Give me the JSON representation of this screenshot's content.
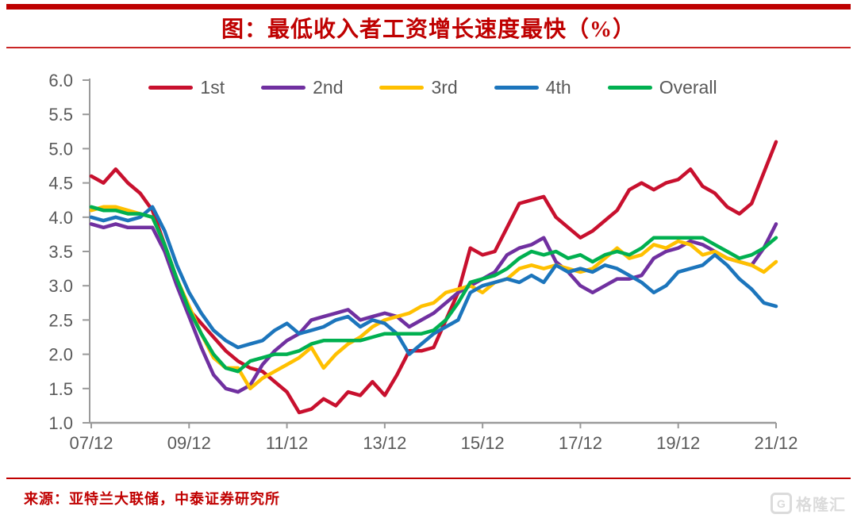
{
  "page": {
    "title": "图：最低收入者工资增长速度最快（%）",
    "source": "来源：亚特兰大联储，中泰证券研究所",
    "watermark": "格隆汇",
    "accent_color": "#C00000",
    "axis_text_color": "#595959",
    "axis_line_color": "#9A9A9A"
  },
  "chart_data": {
    "type": "line",
    "title": "图：最低收入者工资增长速度最快（%）",
    "xlabel": "",
    "ylabel": "",
    "ylim": [
      1.0,
      6.0
    ],
    "grid": false,
    "legend_position": "top",
    "x_start": "2007/12",
    "x_end": "2021/12",
    "frequency": "quarterly",
    "x_tick_labels": [
      "07/12",
      "09/12",
      "11/12",
      "13/12",
      "15/12",
      "17/12",
      "19/12",
      "21/12"
    ],
    "y_tick_labels": [
      "6.0",
      "5.5",
      "5.0",
      "4.5",
      "4.0",
      "3.5",
      "3.0",
      "2.5",
      "2.0",
      "1.5",
      "1.0"
    ],
    "y_ticks": [
      6.0,
      5.5,
      5.0,
      4.5,
      4.0,
      3.5,
      3.0,
      2.5,
      2.0,
      1.5,
      1.0
    ],
    "series": [
      {
        "name": "1st",
        "color": "#C8102E",
        "values": [
          4.6,
          4.5,
          4.7,
          4.5,
          4.35,
          4.1,
          3.6,
          3.1,
          2.65,
          2.45,
          2.25,
          2.05,
          1.9,
          1.8,
          1.75,
          1.6,
          1.45,
          1.15,
          1.2,
          1.35,
          1.25,
          1.45,
          1.4,
          1.6,
          1.4,
          1.7,
          2.05,
          2.05,
          2.1,
          2.5,
          2.9,
          3.55,
          3.45,
          3.5,
          3.85,
          4.2,
          4.25,
          4.3,
          4.0,
          3.85,
          3.7,
          3.8,
          3.95,
          4.1,
          4.4,
          4.5,
          4.4,
          4.5,
          4.55,
          4.7,
          4.45,
          4.35,
          4.15,
          4.05,
          4.2,
          4.65,
          5.1
        ]
      },
      {
        "name": "2nd",
        "color": "#7030A0",
        "values": [
          3.9,
          3.85,
          3.9,
          3.85,
          3.85,
          3.85,
          3.5,
          3.0,
          2.55,
          2.1,
          1.7,
          1.5,
          1.45,
          1.55,
          1.85,
          2.05,
          2.2,
          2.3,
          2.5,
          2.55,
          2.6,
          2.65,
          2.5,
          2.55,
          2.6,
          2.55,
          2.4,
          2.5,
          2.6,
          2.75,
          2.9,
          3.0,
          3.1,
          3.2,
          3.45,
          3.55,
          3.6,
          3.7,
          3.35,
          3.2,
          3.0,
          2.9,
          3.0,
          3.1,
          3.1,
          3.15,
          3.4,
          3.5,
          3.55,
          3.65,
          3.6,
          3.5,
          3.4,
          3.35,
          3.3,
          3.55,
          3.9
        ]
      },
      {
        "name": "3rd",
        "color": "#FFC000",
        "values": [
          4.1,
          4.15,
          4.15,
          4.1,
          4.05,
          4.0,
          3.6,
          3.1,
          2.7,
          2.3,
          1.95,
          1.8,
          1.8,
          1.5,
          1.65,
          1.75,
          1.85,
          1.95,
          2.1,
          1.8,
          2.0,
          2.15,
          2.25,
          2.4,
          2.5,
          2.55,
          2.6,
          2.7,
          2.75,
          2.9,
          2.95,
          3.0,
          2.9,
          3.05,
          3.1,
          3.25,
          3.3,
          3.25,
          3.3,
          3.25,
          3.2,
          3.25,
          3.4,
          3.55,
          3.4,
          3.45,
          3.6,
          3.55,
          3.65,
          3.6,
          3.45,
          3.5,
          3.4,
          3.35,
          3.3,
          3.2,
          3.35
        ]
      },
      {
        "name": "4th",
        "color": "#1C75BC",
        "values": [
          4.0,
          3.95,
          4.0,
          3.95,
          4.0,
          4.15,
          3.8,
          3.3,
          2.9,
          2.6,
          2.35,
          2.2,
          2.1,
          2.15,
          2.2,
          2.35,
          2.45,
          2.3,
          2.35,
          2.4,
          2.5,
          2.55,
          2.4,
          2.5,
          2.45,
          2.3,
          2.0,
          2.15,
          2.3,
          2.4,
          2.5,
          2.9,
          3.0,
          3.05,
          3.1,
          3.05,
          3.15,
          3.05,
          3.3,
          3.2,
          3.25,
          3.2,
          3.3,
          3.25,
          3.15,
          3.05,
          2.9,
          3.0,
          3.2,
          3.25,
          3.3,
          3.45,
          3.3,
          3.1,
          2.95,
          2.75,
          2.7
        ]
      },
      {
        "name": "Overall",
        "color": "#00B050",
        "values": [
          4.15,
          4.1,
          4.1,
          4.05,
          4.05,
          4.0,
          3.6,
          3.1,
          2.65,
          2.3,
          2.0,
          1.8,
          1.75,
          1.9,
          1.95,
          2.0,
          2.0,
          2.05,
          2.15,
          2.2,
          2.2,
          2.2,
          2.2,
          2.25,
          2.3,
          2.3,
          2.3,
          2.3,
          2.35,
          2.5,
          2.75,
          3.05,
          3.1,
          3.15,
          3.25,
          3.4,
          3.5,
          3.45,
          3.5,
          3.4,
          3.45,
          3.35,
          3.45,
          3.5,
          3.45,
          3.55,
          3.7,
          3.7,
          3.7,
          3.7,
          3.7,
          3.6,
          3.5,
          3.4,
          3.45,
          3.55,
          3.7
        ]
      }
    ]
  }
}
